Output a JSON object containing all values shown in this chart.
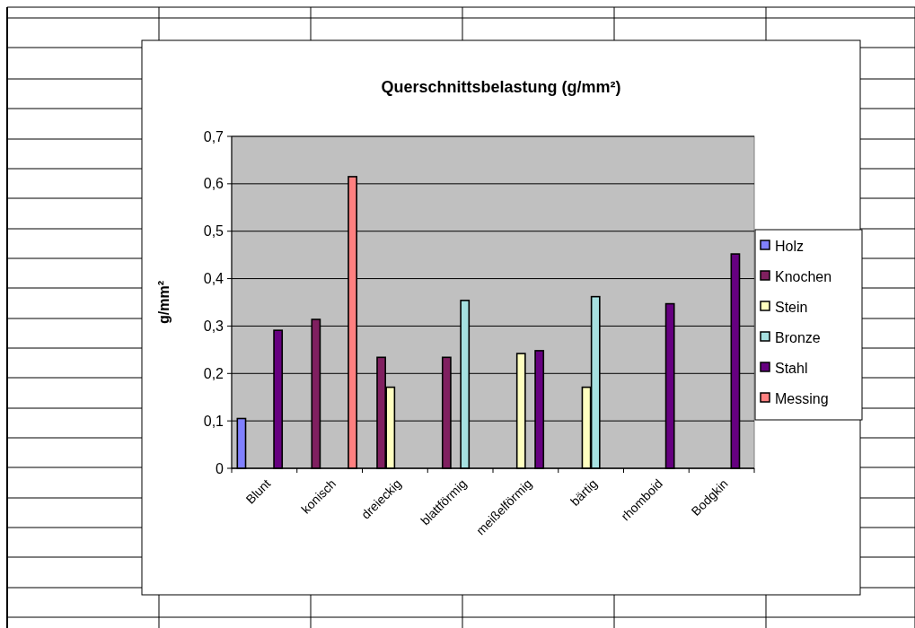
{
  "chart_data": {
    "type": "bar",
    "title": "Querschnittsbelastung (g/mm²)",
    "ylabel": "g/mm²",
    "categories": [
      "Blunt",
      "konisch",
      "dreieckig",
      "blattförmig",
      "meißelförmig",
      "bärtig",
      "rhomboid",
      "Bodgkin"
    ],
    "series": [
      {
        "name": "Holz",
        "color": "#8080ff",
        "values": [
          0.105,
          null,
          null,
          null,
          null,
          null,
          null,
          null
        ]
      },
      {
        "name": "Knochen",
        "color": "#802060",
        "values": [
          null,
          0.314,
          0.234,
          0.234,
          null,
          null,
          null,
          null
        ]
      },
      {
        "name": "Stein",
        "color": "#ffffc0",
        "values": [
          null,
          null,
          0.171,
          null,
          0.242,
          0.171,
          null,
          null
        ]
      },
      {
        "name": "Bronze",
        "color": "#a6e0e0",
        "values": [
          null,
          null,
          null,
          0.354,
          null,
          0.362,
          null,
          null
        ]
      },
      {
        "name": "Stahl",
        "color": "#660080",
        "values": [
          0.291,
          null,
          null,
          null,
          0.248,
          null,
          0.347,
          0.452
        ]
      },
      {
        "name": "Messing",
        "color": "#ff8080",
        "values": [
          null,
          0.615,
          null,
          null,
          null,
          null,
          null,
          null
        ]
      }
    ],
    "ylim": [
      0,
      0.7
    ],
    "yticks": [
      0,
      {
        "value": 0.1,
        "label": "0,1"
      },
      {
        "value": 0.2,
        "label": "0,2"
      },
      {
        "value": 0.3,
        "label": "0,3"
      },
      {
        "value": 0.4,
        "label": "0,4"
      },
      {
        "value": 0.5,
        "label": "0,5"
      },
      {
        "value": 0.6,
        "label": "0,6"
      },
      {
        "value": 0.7,
        "label": "0,7"
      }
    ],
    "grid": "y",
    "legend": "right"
  }
}
